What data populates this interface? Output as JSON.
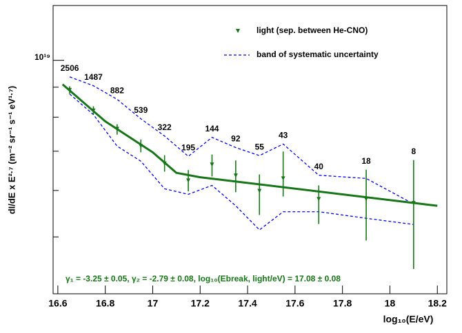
{
  "chart_data": {
    "type": "errorbar",
    "xlabel": "log₁₀(E/eV)",
    "ylabel": "dI/dE x E²·⁷ (m⁻² sr⁻¹ s⁻¹ eV¹·⁷)",
    "annotation": "γ₁ = -3.25 ± 0.05, γ₂ = -2.79 ± 0.08, log₁₀(Ebreak, light/eV) = 17.08 ± 0.08",
    "xlim": [
      16.58,
      18.24
    ],
    "ylim": [
      4e+18,
      1.24e+19
    ],
    "log_y": true,
    "xticks": [
      16.6,
      16.8,
      17,
      17.2,
      17.4,
      17.6,
      17.8,
      18,
      18.2
    ],
    "yticks": [
      {
        "value": 1e+19,
        "label": "10¹⁹"
      }
    ],
    "yminorticks": [
      5e+18,
      6e+18,
      7e+18,
      8e+18,
      9e+18
    ],
    "series": [
      {
        "name": "light (sep. between He-CNO)",
        "color": "#167516",
        "x": [
          16.65,
          16.75,
          16.85,
          16.95,
          17.05,
          17.15,
          17.25,
          17.35,
          17.45,
          17.55,
          17.7,
          17.9,
          18.1
        ],
        "values": [
          8.9e+18,
          8.21e+18,
          7.64e+18,
          7.14e+18,
          6.67e+18,
          6.24e+18,
          6.64e+18,
          6.36e+18,
          5.99e+18,
          6.29e+18,
          5.8e+18,
          5.8e+18,
          5.71e+18
        ],
        "yerr_low": [
          1.4e+17,
          1.3e+17,
          1.7e+17,
          1.7e+17,
          2.1e+17,
          2.6e+17,
          3e+17,
          4e+17,
          5.4e+17,
          4.3e+17,
          5.4e+17,
          8.7e+17,
          1.3e+18
        ],
        "yerr_high": [
          1.3e+17,
          1.4e+17,
          1.4e+17,
          1.9e+17,
          2.2e+17,
          2.6e+17,
          2.7e+17,
          3.9e+17,
          4e+17,
          7e+17,
          3.2e+17,
          7.1e+17,
          1.05e+18
        ],
        "counts": [
          2506,
          1487,
          882,
          539,
          322,
          195,
          144,
          92,
          55,
          43,
          40,
          18,
          8
        ]
      }
    ],
    "fit": {
      "color": "#167516",
      "x": [
        16.62,
        16.8,
        17.0,
        17.1,
        17.2,
        18.2
      ],
      "values": [
        9.1e+18,
        7.87e+18,
        6.97e+18,
        6.43e+18,
        6.32e+18,
        5.65e+18
      ]
    },
    "band": {
      "name": "band of systematic uncertainty",
      "color": "#0000ff",
      "x": [
        16.65,
        16.75,
        16.85,
        16.95,
        17.05,
        17.15,
        17.25,
        17.35,
        17.45,
        17.55,
        17.7,
        17.9,
        18.1
      ],
      "upper": [
        9.37e+18,
        9.05e+18,
        8.58e+18,
        7.95e+18,
        7.43e+18,
        6.86e+18,
        7.39e+18,
        7.1e+18,
        6.88e+18,
        7.2e+18,
        6.37e+18,
        6.29e+18,
        5.69e+18
      ],
      "lower": [
        8.76e+18,
        8.08e+18,
        7.14e+18,
        6.73e+18,
        6.04e+18,
        5.91e+18,
        6.12e+18,
        5.65e+18,
        5.14e+18,
        5.52e+18,
        5.52e+18,
        5.38e+18,
        5.25e+18
      ]
    }
  }
}
